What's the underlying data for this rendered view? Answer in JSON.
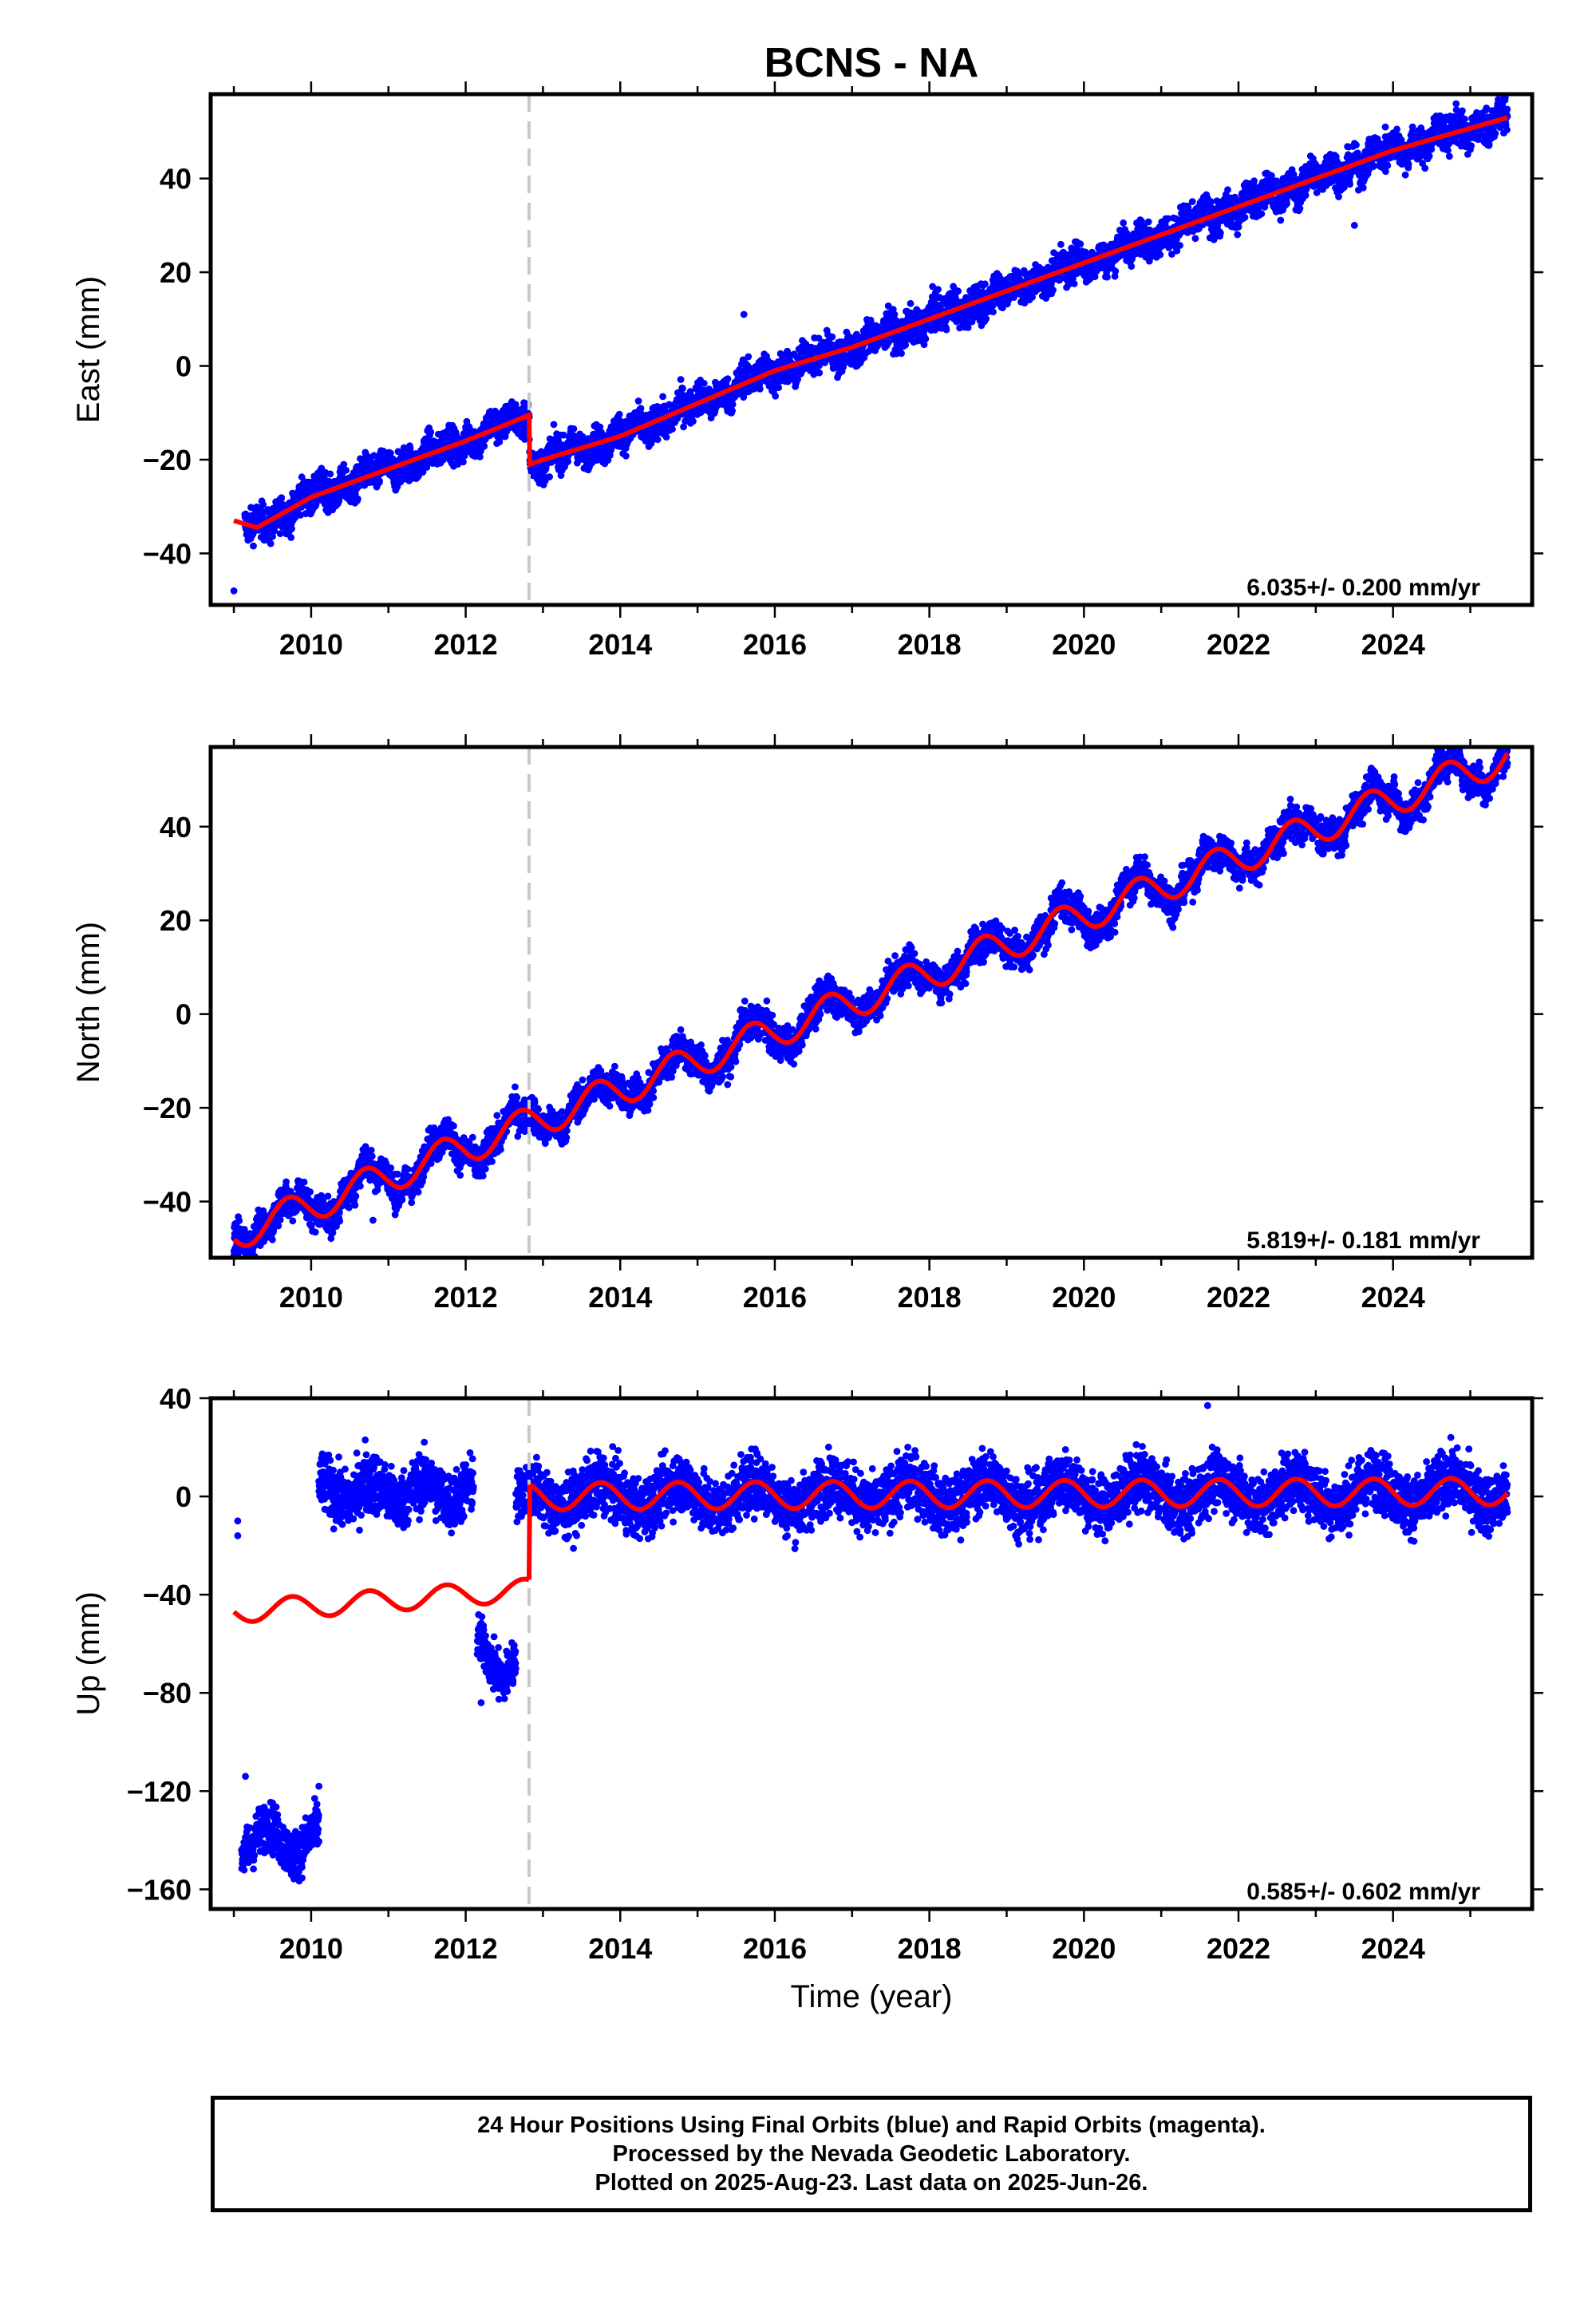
{
  "title": "BCNS - NA",
  "xlabel": "Time (year)",
  "colors": {
    "data": "#0000ff",
    "model": "#ff0000",
    "offset": "#c8c8c8",
    "frame": "#000000"
  },
  "footer": [
    "24 Hour Positions Using Final Orbits (blue) and Rapid Orbits (magenta).",
    "Processed by the Nevada Geodetic Laboratory.",
    "Plotted on 2025-Aug-23. Last data on 2025-Jun-26."
  ],
  "chart_data": [
    {
      "type": "scatter",
      "ylabel": "East (mm)",
      "rate_label": "6.035+/- 0.200 mm/yr",
      "xlim": [
        2008.7,
        2025.8
      ],
      "ylim": [
        -51,
        58
      ],
      "xticks": [
        2010,
        2012,
        2014,
        2016,
        2018,
        2020,
        2022,
        2024
      ],
      "yticks": [
        -40,
        -20,
        0,
        20,
        40
      ],
      "offset_epoch": 2012.82,
      "data_span": [
        2009.0,
        2025.48
      ],
      "gaps": [
        [
          2008.98,
          2009.14
        ]
      ],
      "noise": 1.8,
      "series": [
        {
          "kind": "model",
          "x": [
            2009.0,
            2009.3,
            2010.0,
            2011.0,
            2012.0,
            2012.82,
            2012.83,
            2013.0,
            2014.0,
            2015.0,
            2016.0,
            2017.0,
            2018.0,
            2019.0,
            2020.0,
            2021.0,
            2022.0,
            2023.0,
            2024.0,
            2025.48
          ],
          "y": [
            -33,
            -34.5,
            -28,
            -22,
            -16,
            -10.5,
            -21,
            -20,
            -15,
            -8,
            -1,
            4,
            10,
            16,
            22,
            28,
            34,
            40,
            46,
            53
          ]
        }
      ],
      "outliers": [
        [
          2009.0,
          -48
        ],
        [
          2015.6,
          11
        ],
        [
          2023.9,
          51
        ],
        [
          2023.5,
          30
        ]
      ]
    },
    {
      "type": "scatter",
      "ylabel": "North (mm)",
      "rate_label": "5.819+/- 0.181 mm/yr",
      "xlim": [
        2008.7,
        2025.8
      ],
      "ylim": [
        -52,
        57
      ],
      "xticks": [
        2010,
        2012,
        2014,
        2016,
        2018,
        2020,
        2022,
        2024
      ],
      "yticks": [
        -40,
        -20,
        0,
        20,
        40
      ],
      "offset_epoch": 2012.82,
      "data_span": [
        2009.0,
        2025.48
      ],
      "gaps": [],
      "noise": 1.8,
      "series": [
        {
          "kind": "model",
          "x": [
            2009.0,
            2025.48
          ],
          "y": [
            -47,
            55
          ],
          "seasonal_amp": 3.5,
          "seasonal_phase": 0.45
        }
      ],
      "outliers": [
        [
          2009.1,
          -50
        ],
        [
          2010.8,
          -44
        ]
      ]
    },
    {
      "type": "scatter",
      "ylabel": "Up (mm)",
      "rate_label": "0.585+/- 0.602 mm/yr",
      "xlim": [
        2008.7,
        2025.8
      ],
      "ylim": [
        -168,
        40
      ],
      "xticks": [
        2010,
        2012,
        2014,
        2016,
        2018,
        2020,
        2022,
        2024
      ],
      "yticks": [
        -160,
        -120,
        -80,
        -40,
        0,
        40
      ],
      "offset_epoch": 2012.82,
      "data_span": [
        2009.0,
        2025.48
      ],
      "gaps": [],
      "noise": 5,
      "series": [
        {
          "kind": "model",
          "x": [
            2009.0,
            2012.82
          ],
          "y": [
            -47,
            -38
          ],
          "seasonal_amp": 4.5,
          "seasonal_phase": 0.5
        },
        {
          "kind": "model",
          "x": [
            2012.83,
            2025.48
          ],
          "y": [
            0,
            2
          ],
          "seasonal_amp": 5.5,
          "seasonal_phase": 0.5
        }
      ],
      "clusters": [
        {
          "x": [
            2009.1,
            2010.1
          ],
          "y": -140,
          "spread": 6,
          "noise": 5
        },
        {
          "x": [
            2010.1,
            2012.1
          ],
          "y": 2,
          "spread": 4,
          "noise": 6
        },
        {
          "x": [
            2012.15,
            2012.65
          ],
          "y": -66,
          "spread": 8,
          "noise": 5
        },
        {
          "x": [
            2012.65,
            2012.82
          ],
          "y": 0,
          "spread": 3,
          "noise": 5
        },
        {
          "x": [
            2012.83,
            2025.48
          ],
          "y": 0,
          "spread": 0,
          "noise": 6,
          "follow_model": 1
        }
      ],
      "outliers": [
        [
          2009.05,
          -10
        ],
        [
          2009.05,
          -16
        ],
        [
          2009.15,
          -114
        ],
        [
          2010.7,
          23
        ],
        [
          2012.2,
          -84
        ],
        [
          2021.6,
          37
        ],
        [
          2010.1,
          -118
        ]
      ]
    }
  ]
}
